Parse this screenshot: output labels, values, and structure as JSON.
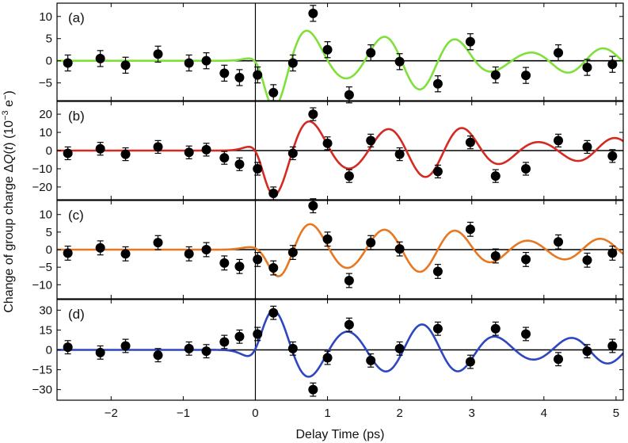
{
  "chart_data": {
    "type": "scatter",
    "xlabel": "Delay Time (ps)",
    "ylabel_parts": {
      "prefix": "Change of group charge ",
      "delta": "Δ",
      "q": "Q",
      "open": "(",
      "t": "t",
      "close": ")",
      "unit_open": " (10",
      "exp": "−3",
      "e": " e",
      "eexp": "−",
      "unit_close": ")"
    },
    "xlim": [
      -2.75,
      5.1
    ],
    "x_ticks": [
      -2,
      -1,
      0,
      1,
      2,
      3,
      4,
      5
    ],
    "x_tick_labels": [
      "−2",
      "−1",
      "0",
      "1",
      "2",
      "3",
      "4",
      "5"
    ],
    "vertical_reference_x": 0,
    "horizontal_reference_y": 0,
    "panels": [
      {
        "label": "(a)",
        "color": "#7FE03A",
        "ylim": [
          -9,
          13
        ],
        "y_ticks": [
          -5,
          0,
          5,
          10
        ],
        "y_tick_labels": [
          "−5",
          "0",
          "5",
          "10"
        ],
        "fit": {
          "type": "damped_cosine",
          "amplitude": 10,
          "period": 1.02,
          "phase_shift": 0.75,
          "decay": 3,
          "rise_center": 0.1,
          "rise_width": 0.08,
          "mod_amp": 0.4,
          "mod_period": 2.4
        },
        "points": [
          {
            "x": -2.6,
            "y": -0.5,
            "err": 1.8
          },
          {
            "x": -2.15,
            "y": 0.5,
            "err": 1.8
          },
          {
            "x": -1.8,
            "y": -1.0,
            "err": 1.8
          },
          {
            "x": -1.35,
            "y": 1.5,
            "err": 1.8
          },
          {
            "x": -0.92,
            "y": -0.5,
            "err": 1.8
          },
          {
            "x": -0.68,
            "y": 0.0,
            "err": 1.8
          },
          {
            "x": -0.43,
            "y": -2.8,
            "err": 1.8
          },
          {
            "x": -0.22,
            "y": -3.8,
            "err": 1.8
          },
          {
            "x": 0.03,
            "y": -3.2,
            "err": 1.8
          },
          {
            "x": 0.25,
            "y": -7.2,
            "err": 1.8
          },
          {
            "x": 0.52,
            "y": -0.5,
            "err": 1.8
          },
          {
            "x": 0.8,
            "y": 10.7,
            "err": 1.8
          },
          {
            "x": 1.0,
            "y": 2.5,
            "err": 1.8
          },
          {
            "x": 1.3,
            "y": -7.7,
            "err": 1.8
          },
          {
            "x": 1.6,
            "y": 1.8,
            "err": 1.8
          },
          {
            "x": 2.0,
            "y": -0.2,
            "err": 1.8
          },
          {
            "x": 2.53,
            "y": -5.2,
            "err": 1.8
          },
          {
            "x": 2.98,
            "y": 4.3,
            "err": 1.8
          },
          {
            "x": 3.33,
            "y": -3.2,
            "err": 1.8
          },
          {
            "x": 3.75,
            "y": -3.3,
            "err": 1.8
          },
          {
            "x": 4.2,
            "y": 1.8,
            "err": 1.8
          },
          {
            "x": 4.6,
            "y": -1.5,
            "err": 1.8
          },
          {
            "x": 4.95,
            "y": -0.8,
            "err": 1.8
          }
        ]
      },
      {
        "label": "(b)",
        "color": "#D42A22",
        "ylim": [
          -27,
          27
        ],
        "y_ticks": [
          -20,
          -10,
          0,
          10,
          20
        ],
        "y_tick_labels": [
          "−20",
          "−10",
          "0",
          "10",
          "20"
        ],
        "fit": {
          "type": "damped_cosine",
          "amplitude": 22,
          "period": 1.05,
          "phase_shift": 0.78,
          "decay": 3.5,
          "rise_center": 0.05,
          "rise_width": 0.08,
          "mod_amp": 0.35,
          "mod_period": 2.6
        },
        "points": [
          {
            "x": -2.6,
            "y": -1.5,
            "err": 3.5
          },
          {
            "x": -2.15,
            "y": 1.0,
            "err": 3.5
          },
          {
            "x": -1.8,
            "y": -2.0,
            "err": 3.5
          },
          {
            "x": -1.35,
            "y": 2.0,
            "err": 3.5
          },
          {
            "x": -0.92,
            "y": -1.0,
            "err": 3.5
          },
          {
            "x": -0.68,
            "y": 0.5,
            "err": 3.5
          },
          {
            "x": -0.43,
            "y": -4.0,
            "err": 3.5
          },
          {
            "x": -0.22,
            "y": -7.5,
            "err": 3.5
          },
          {
            "x": 0.03,
            "y": -10.0,
            "err": 3.5
          },
          {
            "x": 0.25,
            "y": -23.5,
            "err": 3.5
          },
          {
            "x": 0.52,
            "y": -1.5,
            "err": 3.5
          },
          {
            "x": 0.8,
            "y": 20.0,
            "err": 3.5
          },
          {
            "x": 1.0,
            "y": 4.0,
            "err": 3.5
          },
          {
            "x": 1.3,
            "y": -14.0,
            "err": 3.5
          },
          {
            "x": 1.6,
            "y": 5.5,
            "err": 3.5
          },
          {
            "x": 2.0,
            "y": -2.0,
            "err": 3.5
          },
          {
            "x": 2.53,
            "y": -11.5,
            "err": 3.5
          },
          {
            "x": 2.98,
            "y": 4.5,
            "err": 3.5
          },
          {
            "x": 3.33,
            "y": -14.0,
            "err": 3.5
          },
          {
            "x": 3.75,
            "y": -10.0,
            "err": 3.5
          },
          {
            "x": 4.2,
            "y": 5.5,
            "err": 3.5
          },
          {
            "x": 4.6,
            "y": 2.0,
            "err": 3.5
          },
          {
            "x": 4.95,
            "y": -3.0,
            "err": 3.5
          }
        ]
      },
      {
        "label": "(c)",
        "color": "#E87722",
        "ylim": [
          -14,
          14
        ],
        "y_ticks": [
          -10,
          -5,
          0,
          5,
          10
        ],
        "y_tick_labels": [
          "−10",
          "−5",
          "0",
          "5",
          "10"
        ],
        "fit": {
          "type": "damped_cosine",
          "amplitude": 10,
          "period": 1.0,
          "phase_shift": 0.78,
          "decay": 3.5,
          "rise_center": 0.2,
          "rise_width": 0.12,
          "mod_amp": 0.25,
          "mod_period": 2.5
        },
        "points": [
          {
            "x": -2.6,
            "y": -1.0,
            "err": 2.0
          },
          {
            "x": -2.15,
            "y": 0.5,
            "err": 2.0
          },
          {
            "x": -1.8,
            "y": -1.2,
            "err": 2.0
          },
          {
            "x": -1.35,
            "y": 2.0,
            "err": 2.0
          },
          {
            "x": -0.92,
            "y": -1.2,
            "err": 2.0
          },
          {
            "x": -0.68,
            "y": 0.0,
            "err": 2.0
          },
          {
            "x": -0.43,
            "y": -3.8,
            "err": 2.0
          },
          {
            "x": -0.22,
            "y": -4.8,
            "err": 2.0
          },
          {
            "x": 0.03,
            "y": -2.8,
            "err": 2.0
          },
          {
            "x": 0.25,
            "y": -5.2,
            "err": 2.0
          },
          {
            "x": 0.52,
            "y": -0.8,
            "err": 2.0
          },
          {
            "x": 0.8,
            "y": 12.5,
            "err": 2.0
          },
          {
            "x": 1.0,
            "y": 3.0,
            "err": 2.0
          },
          {
            "x": 1.3,
            "y": -8.8,
            "err": 2.0
          },
          {
            "x": 1.6,
            "y": 2.0,
            "err": 2.0
          },
          {
            "x": 2.0,
            "y": 0.2,
            "err": 2.0
          },
          {
            "x": 2.53,
            "y": -6.2,
            "err": 2.0
          },
          {
            "x": 2.98,
            "y": 5.8,
            "err": 2.0
          },
          {
            "x": 3.33,
            "y": -1.8,
            "err": 2.0
          },
          {
            "x": 3.75,
            "y": -2.8,
            "err": 2.0
          },
          {
            "x": 4.2,
            "y": 2.2,
            "err": 2.0
          },
          {
            "x": 4.6,
            "y": -3.0,
            "err": 2.0
          },
          {
            "x": 4.95,
            "y": -1.0,
            "err": 2.0
          }
        ]
      },
      {
        "label": "(d)",
        "color": "#2E46C0",
        "ylim": [
          -38,
          38
        ],
        "y_ticks": [
          -30,
          -15,
          0,
          15,
          30
        ],
        "y_tick_labels": [
          "−30",
          "−15",
          "0",
          "15",
          "30"
        ],
        "fit": {
          "type": "damped_cosine",
          "amplitude": 27,
          "period": 1.03,
          "phase_shift": 0.25,
          "decay": 4.0,
          "rise_center": 0.0,
          "rise_width": 0.09,
          "mod_amp": 0.3,
          "mod_period": 2.5
        },
        "points": [
          {
            "x": -2.6,
            "y": 2.0,
            "err": 5.0
          },
          {
            "x": -2.15,
            "y": -2.0,
            "err": 5.0
          },
          {
            "x": -1.8,
            "y": 3.0,
            "err": 5.0
          },
          {
            "x": -1.35,
            "y": -4.0,
            "err": 5.0
          },
          {
            "x": -0.92,
            "y": 1.0,
            "err": 5.0
          },
          {
            "x": -0.68,
            "y": -1.0,
            "err": 5.0
          },
          {
            "x": -0.43,
            "y": 6.0,
            "err": 5.0
          },
          {
            "x": -0.22,
            "y": 10.0,
            "err": 5.0
          },
          {
            "x": 0.03,
            "y": 12.0,
            "err": 5.0
          },
          {
            "x": 0.25,
            "y": 28.0,
            "err": 5.0
          },
          {
            "x": 0.52,
            "y": 1.0,
            "err": 5.0
          },
          {
            "x": 0.8,
            "y": -30.0,
            "err": 5.0
          },
          {
            "x": 1.0,
            "y": -6.0,
            "err": 5.0
          },
          {
            "x": 1.3,
            "y": 19.0,
            "err": 5.0
          },
          {
            "x": 1.6,
            "y": -8.0,
            "err": 5.0
          },
          {
            "x": 2.0,
            "y": 1.0,
            "err": 5.0
          },
          {
            "x": 2.53,
            "y": 16.0,
            "err": 5.0
          },
          {
            "x": 2.98,
            "y": -9.0,
            "err": 5.0
          },
          {
            "x": 3.33,
            "y": 16.0,
            "err": 5.0
          },
          {
            "x": 3.75,
            "y": 12.0,
            "err": 5.0
          },
          {
            "x": 4.2,
            "y": -7.0,
            "err": 5.0
          },
          {
            "x": 4.6,
            "y": -1.0,
            "err": 5.0
          },
          {
            "x": 4.95,
            "y": 3.0,
            "err": 5.0
          }
        ]
      }
    ]
  }
}
